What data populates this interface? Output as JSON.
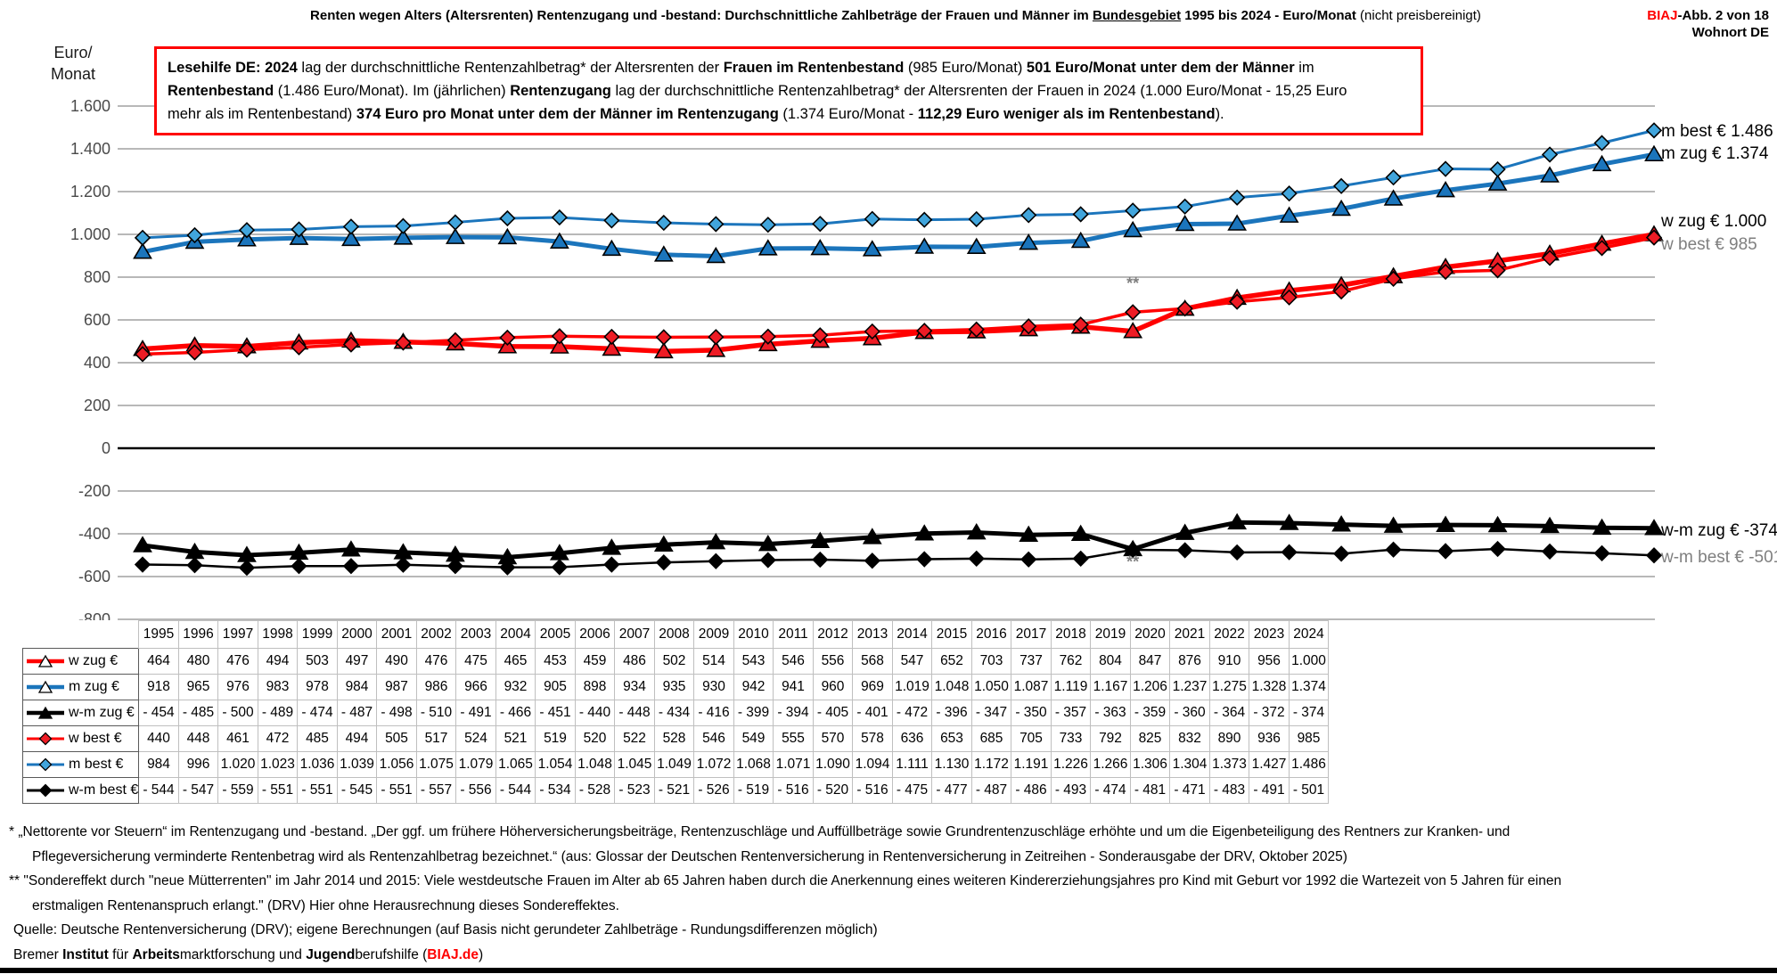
{
  "colors": {
    "accent_red": "#FF0000",
    "blue_line": "#1B75BC",
    "blue_diamond": "#41A5DC",
    "red_marker": "#EE1C25",
    "grid": "#A0A0A0",
    "gray_label": "#7F7F7F"
  },
  "header": {
    "title_segments": [
      {
        "t": "Renten wegen Alters (Altersrenten) Rentenzugang und -bestand: Durchschnittliche Zahlbeträge der Frauen und Männer im ",
        "b": true
      },
      {
        "t": "Bundesgebiet",
        "b": true,
        "u": true
      },
      {
        "t": " 1995 bis 2024 - Euro/Monat ",
        "b": true
      },
      {
        "t": "(nicht preisbereinigt)",
        "b": false
      }
    ],
    "corner": {
      "brand": "BIAJ",
      "fig": "-Abb. 2 von 18",
      "location": "Wohnort DE"
    }
  },
  "axis": {
    "unit_line1": "Euro/",
    "unit_line2": "Monat",
    "ticks": [
      "1.600",
      "1.400",
      "1.200",
      "1.000",
      "800",
      "600",
      "400",
      "200",
      "0",
      "-200",
      "-400",
      "-600",
      "-800"
    ]
  },
  "lesehilfe": {
    "line1": [
      {
        "t": "Lesehilfe DE: 2024",
        "b": true
      },
      {
        "t": " lag der durchschnittliche Rentenzahlbetrag* der Altersrenten der ",
        "b": false
      },
      {
        "t": "Frauen im Rentenbestand",
        "b": true
      },
      {
        "t": " (985 Euro/Monat) ",
        "b": false
      },
      {
        "t": "501 Euro/Monat unter dem der Männer",
        "b": true
      },
      {
        "t": " im",
        "b": false
      }
    ],
    "line2": [
      {
        "t": "Rentenbestand",
        "b": true
      },
      {
        "t": " (1.486 Euro/Monat).  Im (jährlichen) ",
        "b": false
      },
      {
        "t": "Rentenzugang",
        "b": true
      },
      {
        "t": " lag der durchschnittliche Rentenzahlbetrag* der Altersrenten der Frauen in 2024 (1.000 Euro/Monat - 15,25 Euro",
        "b": false
      }
    ],
    "line3": [
      {
        "t": "mehr als im Rentenbestand) ",
        "b": false
      },
      {
        "t": "374 Euro pro Monat unter dem der Männer im Rentenzugang",
        "b": true
      },
      {
        "t": " (1.374 Euro/Monat - ",
        "b": false
      },
      {
        "t": "112,29 Euro weniger als im Rentenbestand",
        "b": true
      },
      {
        "t": ").",
        "b": false
      }
    ]
  },
  "chart_data": {
    "type": "line",
    "title": "Renten wegen Alters (Altersrenten) Rentenzugang und -bestand: Durchschnittliche Zahlbeträge der Frauen und Männer im Bundesgebiet 1995 bis 2024 - Euro/Monat (nicht preisbereinigt)",
    "ylabel": "Euro/Monat",
    "ylim": [
      -800,
      1600
    ],
    "ytick_step": 200,
    "grid": true,
    "x": [
      1995,
      1996,
      1997,
      1998,
      1999,
      2000,
      2001,
      2002,
      2003,
      2004,
      2005,
      2006,
      2007,
      2008,
      2009,
      2010,
      2011,
      2012,
      2013,
      2014,
      2015,
      2016,
      2017,
      2018,
      2019,
      2020,
      2021,
      2022,
      2023,
      2024
    ],
    "series": [
      {
        "name": "w zug €",
        "color": "#FF0000",
        "marker": "triangle",
        "marker_fill": "#EE1C25",
        "legend_fill": "#FFFFFF",
        "line_width": 5.5,
        "values": [
          464,
          480,
          476,
          494,
          503,
          497,
          490,
          476,
          475,
          465,
          453,
          459,
          486,
          502,
          514,
          543,
          546,
          556,
          568,
          547,
          652,
          703,
          737,
          762,
          804,
          847,
          876,
          910,
          956,
          1000
        ]
      },
      {
        "name": "m zug €",
        "color": "#1B75BC",
        "marker": "triangle",
        "marker_fill": "#1B75BC",
        "legend_fill": "#FFFFFF",
        "line_width": 5,
        "values": [
          918,
          965,
          976,
          983,
          978,
          984,
          987,
          986,
          966,
          932,
          905,
          898,
          934,
          935,
          930,
          942,
          941,
          960,
          969,
          1019,
          1048,
          1050,
          1087,
          1119,
          1167,
          1206,
          1237,
          1275,
          1328,
          1374
        ]
      },
      {
        "name": "w-m zug €",
        "color": "#000000",
        "marker": "triangle",
        "marker_fill": "#000000",
        "legend_fill": "#000000",
        "line_width": 5,
        "values": [
          -454,
          -485,
          -500,
          -489,
          -474,
          -487,
          -498,
          -510,
          -491,
          -466,
          -451,
          -440,
          -448,
          -434,
          -416,
          -399,
          -394,
          -405,
          -401,
          -472,
          -396,
          -347,
          -350,
          -357,
          -363,
          -359,
          -360,
          -364,
          -372,
          -374
        ]
      },
      {
        "name": "w best €",
        "color": "#FF0000",
        "marker": "diamond",
        "marker_fill": "#EE1C25",
        "legend_fill": "#EE1C25",
        "line_width": 3.5,
        "values": [
          440,
          448,
          461,
          472,
          485,
          494,
          505,
          517,
          524,
          521,
          519,
          520,
          522,
          528,
          546,
          549,
          555,
          570,
          578,
          636,
          653,
          685,
          705,
          733,
          792,
          825,
          832,
          890,
          936,
          985
        ]
      },
      {
        "name": "m best €",
        "color": "#1B75BC",
        "marker": "diamond",
        "marker_fill": "#41A5DC",
        "legend_fill": "#41A5DC",
        "line_width": 3,
        "values": [
          984,
          996,
          1020,
          1023,
          1036,
          1039,
          1056,
          1075,
          1079,
          1065,
          1054,
          1048,
          1045,
          1049,
          1072,
          1068,
          1071,
          1090,
          1094,
          1111,
          1130,
          1172,
          1191,
          1226,
          1266,
          1306,
          1304,
          1373,
          1427,
          1486
        ]
      },
      {
        "name": "w-m best €",
        "color": "#000000",
        "marker": "diamond",
        "marker_fill": "#000000",
        "legend_fill": "#000000",
        "line_width": 2.5,
        "values": [
          -544,
          -547,
          -559,
          -551,
          -551,
          -545,
          -551,
          -557,
          -556,
          -544,
          -534,
          -528,
          -523,
          -521,
          -526,
          -519,
          -516,
          -520,
          -516,
          -475,
          -477,
          -487,
          -486,
          -493,
          -474,
          -481,
          -471,
          -483,
          -491,
          -501
        ]
      }
    ],
    "annotations": [
      {
        "text": "**",
        "year": 2014,
        "value": 745
      },
      {
        "text": "**",
        "year": 2014,
        "value": -557
      }
    ],
    "end_labels": [
      {
        "text": "m best € 1.486",
        "color": "#000000",
        "y": 147
      },
      {
        "text": "m zug € 1.374",
        "color": "#000000",
        "y": 172
      },
      {
        "text": "w zug € 1.000",
        "color": "#000000",
        "y": 248
      },
      {
        "text": "w best € 985",
        "color": "#7F7F7F",
        "y": 274
      },
      {
        "text": "w-m zug € -374",
        "color": "#000000",
        "y": 595
      },
      {
        "text": "w-m best € -501",
        "color": "#7F7F7F",
        "y": 625
      }
    ],
    "legend_position": "table-left"
  },
  "footnotes": {
    "line1": [
      {
        "t": "*  „Nettorente vor Steuern“ im Rentenzugang und -bestand. „Der ggf. um frühere Höherversicherungsbeiträge, Rentenzuschläge und Auffüllbeträge sowie Grundrentenzuschläge erhöhte und um die Eigenbeteiligung  des Rentners zur Kranken- und",
        "b": false
      }
    ],
    "line2": [
      {
        "t": "Pflegeversicherung verminderte Rentenbetrag wird als Rentenzahlbetrag bezeichnet.“ (aus: Glossar der Deutschen Rentenversicherung in Rentenversicherung in Zeitreihen - Sonderausgabe der DRV, Oktober 2025)",
        "b": false
      }
    ],
    "line3": [
      {
        "t": "** \"Sondereffekt durch \"neue Mütterrenten\" im Jahr 2014 und 2015: Viele westdeutsche Frauen im Alter ab 65 Jahren haben durch die Anerkennung eines weiteren Kindererziehungsjahres pro Kind mit Geburt vor 1992 die Wartezeit von 5 Jahren für einen",
        "b": false
      }
    ],
    "line4": [
      {
        "t": "erstmaligen Rentenanspruch erlangt.\" (DRV) Hier ohne Herausrechnung dieses Sondereffektes.",
        "b": false
      }
    ],
    "line5": [
      {
        "t": "Quelle: Deutsche Rentenversicherung (DRV);  eigene  Berechnungen (auf Basis nicht gerundeter Zahlbeträge - Rundungsdifferenzen möglich)",
        "b": false
      }
    ],
    "line6": [
      {
        "t": "Bremer ",
        "b": false
      },
      {
        "t": "Institut",
        "b": true
      },
      {
        "t": " für ",
        "b": false
      },
      {
        "t": "Arbeits",
        "b": true
      },
      {
        "t": "marktforschung und ",
        "b": false
      },
      {
        "t": "Jugend",
        "b": true
      },
      {
        "t": "berufshilfe (",
        "b": false
      },
      {
        "t": "BIAJ.de",
        "b": true,
        "c": "#FF0000"
      },
      {
        "t": ")",
        "b": false
      }
    ]
  }
}
